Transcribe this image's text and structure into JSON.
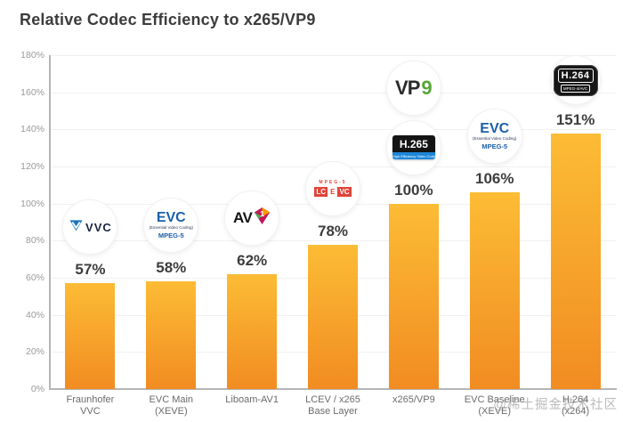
{
  "watermark": "@稀土掘金技术社区",
  "chart_data": {
    "type": "bar",
    "title": "Relative Codec Efficiency to x265/VP9",
    "xlabel": "",
    "ylabel": "",
    "ylim": [
      0,
      180
    ],
    "ytick_labels": [
      "0%",
      "20%",
      "40%",
      "60%",
      "80%",
      "100%",
      "120%",
      "140%",
      "160%",
      "180%"
    ],
    "grid": true,
    "legend": "none",
    "bar_gradient_top": "#FCBC35",
    "bar_gradient_bottom": "#F18C22",
    "categories": [
      "Fraunhofer VVC",
      "EVC Main (XEVE)",
      "Liboam-AV1",
      "LCEV / x265 Base Layer",
      "x265/VP9",
      "EVC Baseline (XEVE)",
      "H.264 (x264)"
    ],
    "values": [
      57,
      58,
      62,
      78,
      100,
      106,
      151
    ],
    "bars": [
      {
        "label_lines": [
          "Fraunhofer",
          "VVC"
        ],
        "value": 57,
        "value_label": "57%",
        "logos": [
          "vvc"
        ]
      },
      {
        "label_lines": [
          "EVC Main",
          "(XEVE)"
        ],
        "value": 58,
        "value_label": "58%",
        "logos": [
          "evc"
        ]
      },
      {
        "label_lines": [
          "Liboam-AV1"
        ],
        "value": 62,
        "value_label": "62%",
        "logos": [
          "av1"
        ]
      },
      {
        "label_lines": [
          "LCEV / x265",
          "Base Layer"
        ],
        "value": 78,
        "value_label": "78%",
        "logos": [
          "lcevc"
        ]
      },
      {
        "label_lines": [
          "x265/VP9"
        ],
        "value": 100,
        "value_label": "100%",
        "logos": [
          "vp9",
          "h265"
        ]
      },
      {
        "label_lines": [
          "EVC Baseline",
          "(XEVE)"
        ],
        "value": 106,
        "value_label": "106%",
        "logos": [
          "evc"
        ]
      },
      {
        "label_lines": [
          "H.264",
          "(x264)"
        ],
        "value": 151,
        "value_label": "151%",
        "logos": [
          "h264"
        ]
      }
    ]
  },
  "logos": {
    "vvc": {
      "text": "VVC"
    },
    "evc": {
      "title": "EVC",
      "subtitle": "(Essential Video Coding)",
      "footer": "MPEG-5"
    },
    "av1": {
      "prefix": "AV",
      "suffix": "1"
    },
    "lcevc": {
      "top": "MPEG-5",
      "blocks": [
        "LC",
        "E",
        "VC"
      ]
    },
    "h265": {
      "title": "H.265",
      "subtitle": "High Efficiency Video Coding"
    },
    "vp9": {
      "prefix": "VP",
      "suffix": "9"
    },
    "h264": {
      "title": "H.264",
      "subtitle": "MPEG-4/AVC"
    }
  }
}
